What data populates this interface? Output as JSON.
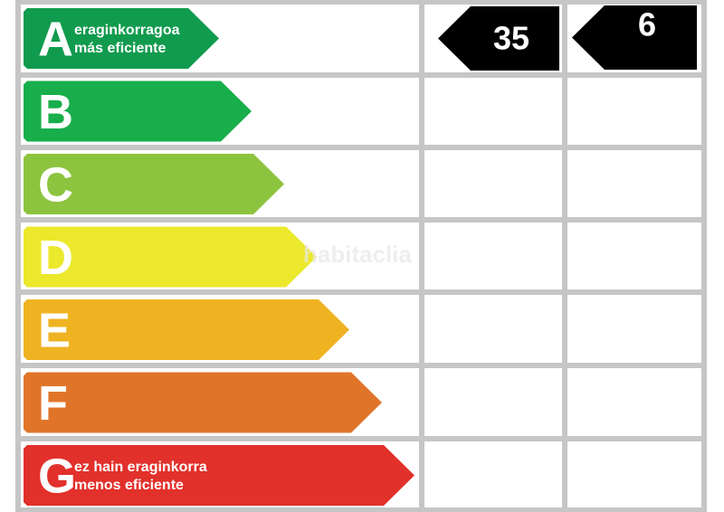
{
  "classes": [
    {
      "letter": "A",
      "line1": "eraginkorragoa",
      "line2": "más eficiente",
      "color": "#119b4e"
    },
    {
      "letter": "B",
      "color": "#18ae4b"
    },
    {
      "letter": "C",
      "color": "#8cc43f"
    },
    {
      "letter": "D",
      "color": "#ece82c"
    },
    {
      "letter": "E",
      "color": "#efb322"
    },
    {
      "letter": "F",
      "color": "#e0752a"
    },
    {
      "letter": "G",
      "line1": "ez hain eraginkorra",
      "line2": "menos eficiente",
      "color": "#e2302b"
    }
  ],
  "indicators": [
    35,
    6
  ],
  "watermark": "habitaclia"
}
